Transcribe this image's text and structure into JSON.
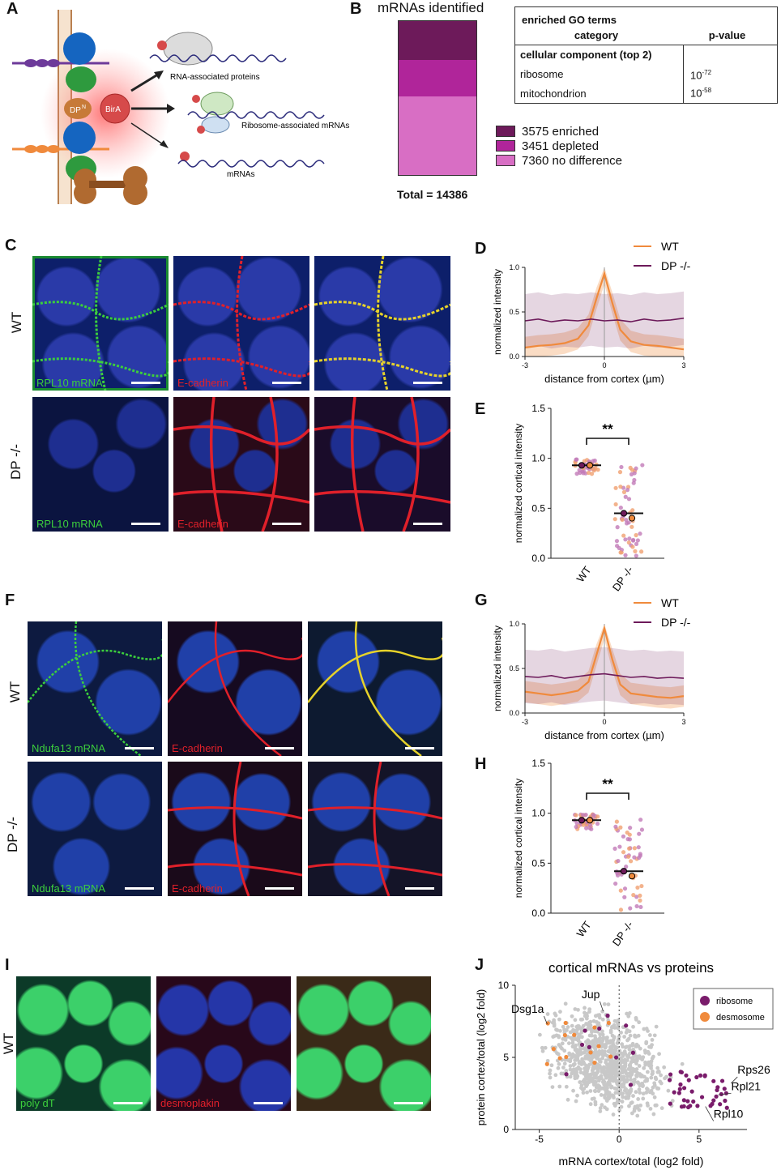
{
  "panelA": {
    "label": "A",
    "dp_label": "DP",
    "dp_sup": "N",
    "birA_label": "BirA",
    "arrow_labels": [
      "RNA-associated proteins",
      "Ribosome-associated mRNAs",
      "mRNAs"
    ]
  },
  "panelB": {
    "label": "B",
    "bar_title": "mRNAs identified",
    "total": "Total = 14386",
    "segments": [
      {
        "count": 3575,
        "name": "enriched",
        "color": "#6d1a5a"
      },
      {
        "count": 3451,
        "name": "depleted",
        "color": "#b0259a"
      },
      {
        "count": 7360,
        "name": "no difference",
        "color": "#d86ec4"
      }
    ],
    "legend": [
      "3575 enriched",
      "3451 depleted",
      "7360 no difference"
    ],
    "table": {
      "title": "enriched GO terms",
      "col1": "category",
      "col2": "p-value",
      "section": "cellular component (top 2)",
      "rows": [
        {
          "term": "ribosome",
          "base": "10",
          "exp": "-72"
        },
        {
          "term": "mitochondrion",
          "base": "10",
          "exp": "-58"
        }
      ]
    }
  },
  "panelC": {
    "label": "C",
    "row1": "WT",
    "row2": "DP -/-",
    "captions": [
      "RPL10 mRNA",
      "E-cadherin",
      "RPL10 mRNA",
      "E-cadherin"
    ]
  },
  "panelF": {
    "label": "F",
    "row1": "WT",
    "row2": "DP -/-",
    "captions": [
      "Ndufa13 mRNA",
      "E-cadherin",
      "Ndufa13 mRNA",
      "E-cadherin"
    ]
  },
  "panelI": {
    "label": "I",
    "row1": "WT",
    "captions": [
      "poly dT",
      "desmoplakin"
    ]
  },
  "chart_data": [
    {
      "panel": "D",
      "type": "line",
      "xlabel": "distance from cortex (µm)",
      "ylabel": "normalized intensity",
      "xlim": [
        -3,
        3
      ],
      "ylim": [
        0,
        1.0
      ],
      "xticks": [
        "-3",
        "0",
        "3"
      ],
      "yticks": [
        "0.0",
        "0.5",
        "1.0"
      ],
      "legend_position": "top-right",
      "series": [
        {
          "name": "WT",
          "color": "#f08a3c",
          "x": [
            -3,
            -2.5,
            -2,
            -1.5,
            -1,
            -0.6,
            -0.3,
            0,
            0.3,
            0.6,
            1,
            1.5,
            2,
            2.5,
            3
          ],
          "y": [
            0.1,
            0.12,
            0.13,
            0.15,
            0.2,
            0.35,
            0.65,
            0.93,
            0.6,
            0.3,
            0.17,
            0.13,
            0.12,
            0.1,
            0.08
          ]
        },
        {
          "name": "DP -/-",
          "color": "#6d1a5a",
          "x": [
            -3,
            -2.5,
            -2,
            -1.5,
            -1,
            -0.5,
            0,
            0.5,
            1,
            1.5,
            2,
            2.5,
            3
          ],
          "y": [
            0.4,
            0.42,
            0.39,
            0.41,
            0.4,
            0.42,
            0.4,
            0.41,
            0.39,
            0.42,
            0.4,
            0.41,
            0.43
          ]
        }
      ]
    },
    {
      "panel": "E",
      "type": "scatter",
      "ylabel": "normalized cortical intensity",
      "categories": [
        "WT",
        "DP -/-"
      ],
      "ylim": [
        0,
        1.5
      ],
      "yticks": [
        "0.0",
        "0.5",
        "1.0",
        "1.5"
      ],
      "significance": "**",
      "medians": [
        0.93,
        0.45
      ]
    },
    {
      "panel": "G",
      "type": "line",
      "xlabel": "distance from cortex (µm)",
      "ylabel": "normalized intensity",
      "xlim": [
        -3,
        3
      ],
      "ylim": [
        0,
        1.0
      ],
      "xticks": [
        "-3",
        "0",
        "3"
      ],
      "yticks": [
        "0.0",
        "0.5",
        "1.0"
      ],
      "legend_position": "top-right",
      "series": [
        {
          "name": "WT",
          "color": "#f08a3c",
          "x": [
            -3,
            -2.5,
            -2,
            -1.5,
            -1,
            -0.6,
            -0.3,
            0,
            0.3,
            0.6,
            1,
            1.5,
            2,
            2.5,
            3
          ],
          "y": [
            0.24,
            0.22,
            0.2,
            0.22,
            0.25,
            0.35,
            0.65,
            0.95,
            0.6,
            0.32,
            0.22,
            0.2,
            0.18,
            0.17,
            0.19
          ]
        },
        {
          "name": "DP -/-",
          "color": "#6d1a5a",
          "x": [
            -3,
            -2.5,
            -2,
            -1.5,
            -1,
            -0.5,
            0,
            0.5,
            1,
            1.5,
            2,
            2.5,
            3
          ],
          "y": [
            0.41,
            0.4,
            0.42,
            0.39,
            0.41,
            0.43,
            0.44,
            0.42,
            0.4,
            0.41,
            0.39,
            0.4,
            0.39
          ]
        }
      ]
    },
    {
      "panel": "H",
      "type": "scatter",
      "ylabel": "normalized cortical intensity",
      "categories": [
        "WT",
        "DP -/-"
      ],
      "ylim": [
        0,
        1.5
      ],
      "yticks": [
        "0.0",
        "0.5",
        "1.0",
        "1.5"
      ],
      "significance": "**",
      "medians": [
        0.93,
        0.42
      ]
    },
    {
      "panel": "J",
      "type": "scatter",
      "title": "cortical mRNAs vs proteins",
      "xlabel": "mRNA cortex/total (log2 fold)",
      "ylabel": "protein cortex/total (log2 fold)",
      "xticks": [
        "-5",
        "0",
        "5"
      ],
      "yticks": [
        "0",
        "5",
        "10"
      ],
      "xlim": [
        -6.5,
        8
      ],
      "ylim": [
        0,
        10
      ],
      "legend": [
        {
          "name": "ribosome",
          "color": "#7a1c6b"
        },
        {
          "name": "desmosome",
          "color": "#f08a3c"
        }
      ],
      "annotations": [
        {
          "text": "Dsg1a",
          "x": -4.5,
          "y": 7.3
        },
        {
          "text": "Jup",
          "x": -1.0,
          "y": 8.2
        },
        {
          "text": "Rps26",
          "x": 7.0,
          "y": 3.2
        },
        {
          "text": "Rpl21",
          "x": 6.2,
          "y": 2.4
        },
        {
          "text": "Rpl10",
          "x": 5.4,
          "y": 1.6
        }
      ]
    }
  ]
}
